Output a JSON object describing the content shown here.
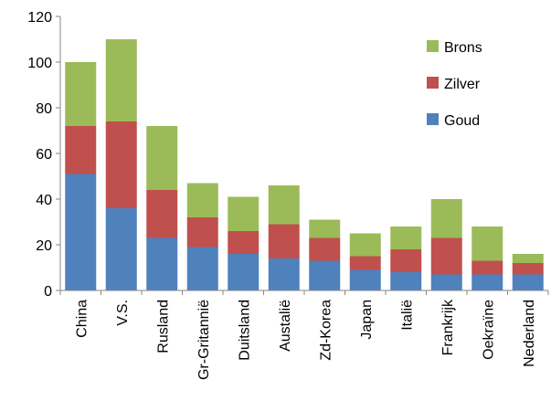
{
  "chart_data": {
    "type": "bar",
    "stacked": true,
    "categories": [
      "China",
      "V.S.",
      "Rusland",
      "Gr-Gritannië",
      "Duitsland",
      "Austalië",
      "Zd-Korea",
      "Japan",
      "Italië",
      "Frankrijk",
      "Oekraïne",
      "Nederland"
    ],
    "series": [
      {
        "name": "Goud",
        "color": "#4f81bd",
        "values": [
          51,
          36,
          23,
          19,
          16,
          14,
          13,
          9,
          8,
          7,
          7,
          7
        ]
      },
      {
        "name": "Zilver",
        "color": "#c0504d",
        "values": [
          21,
          38,
          21,
          13,
          10,
          15,
          10,
          6,
          10,
          16,
          6,
          5
        ]
      },
      {
        "name": "Brons",
        "color": "#9bbb59",
        "values": [
          28,
          36,
          28,
          15,
          15,
          17,
          8,
          10,
          10,
          17,
          15,
          4
        ]
      }
    ],
    "ylim": [
      0,
      120
    ],
    "yticks": [
      0,
      20,
      40,
      60,
      80,
      100,
      120
    ],
    "legend_position": "top-right",
    "grid": false
  }
}
